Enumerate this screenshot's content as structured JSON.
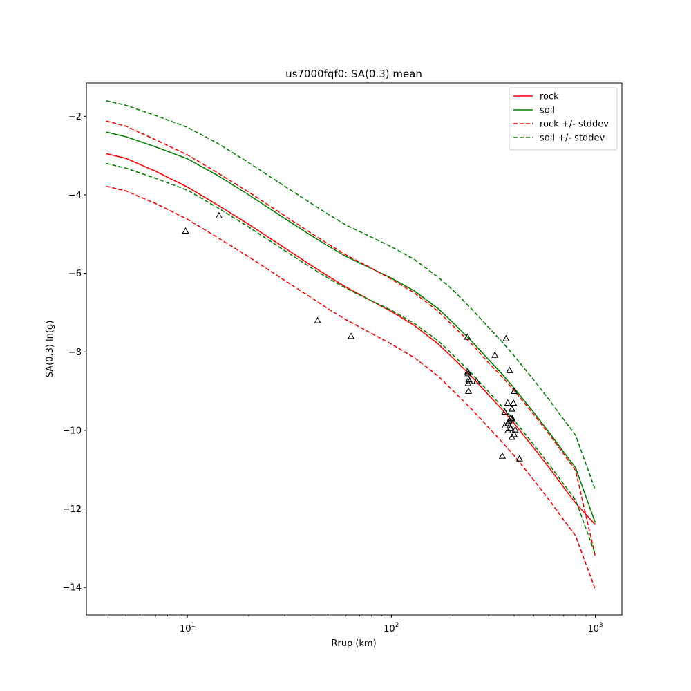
{
  "chart_data": {
    "type": "line",
    "title": "us7000fqf0: SA(0.3) mean",
    "xlabel": "Rrup (km)",
    "ylabel": "SA(0.3) ln(g)",
    "xscale": "log",
    "xlim": [
      3.2,
      1350
    ],
    "ylim": [
      -14.7,
      -1.15
    ],
    "x_ticks": [
      {
        "value": 10,
        "base": "10",
        "exp": "1"
      },
      {
        "value": 100,
        "base": "10",
        "exp": "2"
      },
      {
        "value": 1000,
        "base": "10",
        "exp": "3"
      }
    ],
    "y_ticks": [
      {
        "value": -2,
        "label": "−2"
      },
      {
        "value": -4,
        "label": "−4"
      },
      {
        "value": -6,
        "label": "−6"
      },
      {
        "value": -8,
        "label": "−8"
      },
      {
        "value": -10,
        "label": "−10"
      },
      {
        "value": -12,
        "label": "−12"
      },
      {
        "value": -14,
        "label": "−14"
      }
    ],
    "grid": false,
    "legend_position": "top-right",
    "x": [
      4,
      5,
      7,
      10,
      14,
      20,
      30,
      40,
      50,
      60,
      80,
      100,
      130,
      170,
      200,
      250,
      300,
      350,
      400,
      500,
      600,
      700,
      800,
      1000
    ],
    "series": [
      {
        "name": "rock",
        "color": "#ff0000",
        "dash": false,
        "values": [
          -2.95,
          -3.07,
          -3.4,
          -3.8,
          -4.25,
          -4.75,
          -5.35,
          -5.78,
          -6.1,
          -6.35,
          -6.7,
          -6.97,
          -7.33,
          -7.8,
          -8.15,
          -8.65,
          -9.1,
          -9.47,
          -9.82,
          -10.45,
          -10.98,
          -11.45,
          -11.85,
          -12.4
        ]
      },
      {
        "name": "soil",
        "color": "#008000",
        "dash": false,
        "values": [
          -2.4,
          -2.52,
          -2.78,
          -3.08,
          -3.5,
          -4.0,
          -4.6,
          -5.02,
          -5.33,
          -5.57,
          -5.88,
          -6.12,
          -6.45,
          -6.9,
          -7.25,
          -7.75,
          -8.2,
          -8.57,
          -8.92,
          -9.55,
          -10.08,
          -10.55,
          -10.95,
          -12.35
        ]
      },
      {
        "name": "rock +/- stddev",
        "color": "#ff0000",
        "dash": true,
        "values": [
          -2.12,
          -2.25,
          -2.6,
          -2.98,
          -3.43,
          -3.93,
          -4.53,
          -4.96,
          -5.28,
          -5.53,
          -5.87,
          -6.15,
          -6.5,
          -6.97,
          -7.33,
          -7.82,
          -8.28,
          -8.64,
          -8.98,
          -9.6,
          -10.13,
          -10.6,
          -11.02,
          -13.2
        ]
      },
      {
        "name": "",
        "color": "#ff0000",
        "dash": true,
        "values": [
          -3.78,
          -3.9,
          -4.22,
          -4.62,
          -5.08,
          -5.58,
          -6.18,
          -6.6,
          -6.93,
          -7.18,
          -7.53,
          -7.8,
          -8.15,
          -8.62,
          -8.98,
          -9.48,
          -9.93,
          -10.3,
          -10.64,
          -11.27,
          -11.8,
          -12.28,
          -12.68,
          -14.05
        ]
      },
      {
        "name": "soil +/- stddev",
        "color": "#008000",
        "dash": true,
        "values": [
          -1.6,
          -1.72,
          -1.98,
          -2.28,
          -2.68,
          -3.18,
          -3.78,
          -4.2,
          -4.52,
          -4.77,
          -5.08,
          -5.32,
          -5.65,
          -6.1,
          -6.42,
          -6.93,
          -7.38,
          -7.75,
          -8.1,
          -8.72,
          -9.25,
          -9.72,
          -10.12,
          -11.52
        ]
      },
      {
        "name": "",
        "color": "#008000",
        "dash": true,
        "values": [
          -3.2,
          -3.32,
          -3.58,
          -3.88,
          -4.32,
          -4.82,
          -5.42,
          -5.84,
          -6.15,
          -6.38,
          -6.7,
          -6.94,
          -7.28,
          -7.72,
          -8.07,
          -8.57,
          -9.02,
          -9.4,
          -9.74,
          -10.37,
          -10.9,
          -11.37,
          -11.77,
          -13.15
        ]
      }
    ],
    "observations": [
      {
        "x": 9.8,
        "y": -4.92
      },
      {
        "x": 14.3,
        "y": -4.53
      },
      {
        "x": 43.5,
        "y": -7.2
      },
      {
        "x": 63.5,
        "y": -7.6
      },
      {
        "x": 236,
        "y": -7.62
      },
      {
        "x": 237,
        "y": -8.5
      },
      {
        "x": 238,
        "y": -8.55
      },
      {
        "x": 240,
        "y": -8.7
      },
      {
        "x": 238,
        "y": -8.8
      },
      {
        "x": 242,
        "y": -8.75
      },
      {
        "x": 239,
        "y": -9.0
      },
      {
        "x": 262,
        "y": -8.75
      },
      {
        "x": 322,
        "y": -8.08
      },
      {
        "x": 365,
        "y": -7.66
      },
      {
        "x": 380,
        "y": -8.47
      },
      {
        "x": 400,
        "y": -9.0
      },
      {
        "x": 372,
        "y": -9.3
      },
      {
        "x": 397,
        "y": -9.3
      },
      {
        "x": 390,
        "y": -9.45
      },
      {
        "x": 360,
        "y": -9.53
      },
      {
        "x": 385,
        "y": -9.68
      },
      {
        "x": 392,
        "y": -9.7
      },
      {
        "x": 378,
        "y": -9.75
      },
      {
        "x": 373,
        "y": -9.82
      },
      {
        "x": 360,
        "y": -9.88
      },
      {
        "x": 380,
        "y": -9.88
      },
      {
        "x": 384,
        "y": -9.95
      },
      {
        "x": 405,
        "y": -9.98
      },
      {
        "x": 373,
        "y": -10.0
      },
      {
        "x": 400,
        "y": -10.1
      },
      {
        "x": 390,
        "y": -10.17
      },
      {
        "x": 350,
        "y": -10.65
      },
      {
        "x": 425,
        "y": -10.72
      }
    ]
  }
}
